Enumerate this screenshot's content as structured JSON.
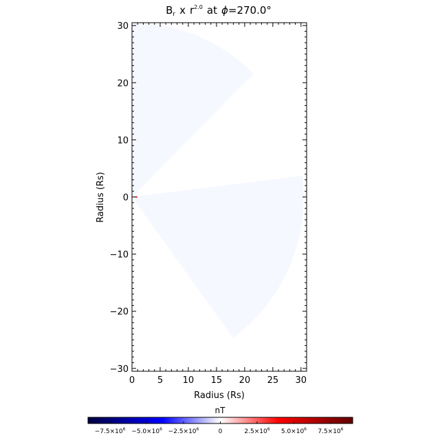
{
  "chart_data": {
    "type": "heatmap",
    "title": {
      "var": "B",
      "var_sub": "r",
      "times": "x",
      "r": "r",
      "exp": "2.0",
      "at": "at",
      "phi": "ϕ",
      "value": "=270.0°"
    },
    "xlabel": "Radius (Rs)",
    "ylabel": "Radius (Rs)",
    "xlim": [
      0,
      31
    ],
    "ylim": [
      -30.5,
      30.5
    ],
    "x_ticks": [
      0,
      5,
      10,
      15,
      20,
      25,
      30
    ],
    "x_tick_labels": [
      "0",
      "5",
      "10",
      "15",
      "20",
      "25",
      "30"
    ],
    "y_ticks": [
      30,
      20,
      10,
      0,
      -10,
      -20,
      -30
    ],
    "y_tick_labels": [
      "30",
      "20",
      "10",
      "0",
      "−10",
      "−20",
      "−30"
    ],
    "regions": {
      "upper_wedge": {
        "r_max": 30.5,
        "theta_deg": [
          45,
          90
        ]
      },
      "lower_wedge": {
        "r_max": 30.5,
        "theta_deg": [
          -54,
          7
        ]
      }
    },
    "field_color": "#f6f8ff",
    "origin_marker_color": "#ff0000",
    "colorbar": {
      "label": "nT",
      "range": [
        -9000000.0,
        9000000.0
      ],
      "ticks": [
        -7500000,
        -5000000,
        -2500000,
        0,
        2500000,
        5000000,
        7500000
      ],
      "tick_labels": [
        {
          "m": "−7.5",
          "e": "6"
        },
        {
          "m": "−5.0",
          "e": "6"
        },
        {
          "m": "−2.5",
          "e": "6"
        },
        {
          "m": "0",
          "e": ""
        },
        {
          "m": "2.5",
          "e": "6"
        },
        {
          "m": "5.0",
          "e": "6"
        },
        {
          "m": "7.5",
          "e": "6"
        }
      ],
      "times_sign": "×10",
      "colors": [
        "#000040",
        "#0000ff",
        "#ffffff",
        "#ff0000",
        "#600000"
      ]
    }
  }
}
